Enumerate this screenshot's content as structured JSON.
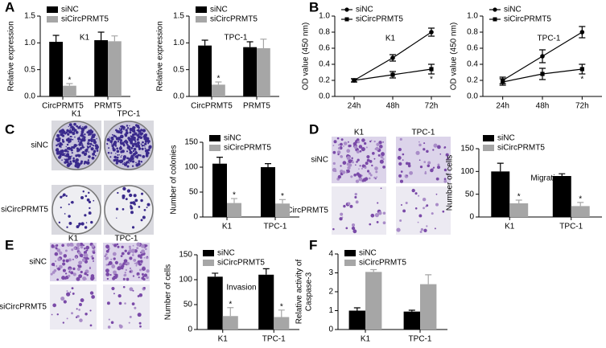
{
  "panel_labels": [
    "A",
    "B",
    "C",
    "D",
    "E",
    "F"
  ],
  "images": [
    {
      "columns": [
        "K1",
        "TPC-1"
      ],
      "rows": [
        "siNC",
        "siCircPRMT5"
      ]
    },
    {
      "columns": [
        "K1",
        "TPC-1"
      ],
      "rows": [
        "siNC",
        "siCircPRMT5"
      ]
    },
    {
      "columns": [
        "K1",
        "TPC-1"
      ],
      "rows": [
        "siNC",
        "siCircPRMT5"
      ]
    }
  ],
  "chart_data": [
    {
      "type": "bar",
      "annotation": "K1",
      "ylabel": [
        "Relative expression"
      ],
      "categories": [
        "CircPRMT5",
        "PRMT5"
      ],
      "series": [
        {
          "name": "siNC",
          "color": "#000000",
          "values": [
            1.02,
            1.05
          ],
          "errors": [
            0.12,
            0.15
          ],
          "significance": [
            null,
            null
          ]
        },
        {
          "name": "siCircPRMT5",
          "color": "#a6a6a6",
          "values": [
            0.2,
            1.03
          ],
          "errors": [
            0.04,
            0.1
          ],
          "significance": [
            "*",
            null
          ]
        }
      ],
      "ylim": [
        0,
        1.5
      ],
      "yticks": [
        {
          "value": 0,
          "label": "0.0"
        },
        {
          "value": 0.5,
          "label": "0.5"
        },
        {
          "value": 1,
          "label": "1.0"
        },
        {
          "value": 1.5,
          "label": "1.5"
        }
      ]
    },
    {
      "type": "bar",
      "annotation": "TPC-1",
      "ylabel": [
        "Relative expression"
      ],
      "categories": [
        "CircPRMT5",
        "PRMT5"
      ],
      "series": [
        {
          "name": "siNC",
          "color": "#000000",
          "values": [
            0.95,
            0.92
          ],
          "errors": [
            0.1,
            0.1
          ],
          "significance": [
            null,
            null
          ]
        },
        {
          "name": "siCircPRMT5",
          "color": "#a6a6a6",
          "values": [
            0.22,
            0.9
          ],
          "errors": [
            0.05,
            0.17
          ],
          "significance": [
            "*",
            null
          ]
        }
      ],
      "ylim": [
        0,
        1.5
      ],
      "yticks": [
        {
          "value": 0,
          "label": "0.0"
        },
        {
          "value": 0.5,
          "label": "0.5"
        },
        {
          "value": 1,
          "label": "1.0"
        },
        {
          "value": 1.5,
          "label": "1.5"
        }
      ]
    },
    {
      "type": "line",
      "annotation": "K1",
      "ylabel": [
        "OD value (450 nm)"
      ],
      "categories": [
        "24h",
        "48h",
        "72h"
      ],
      "series": [
        {
          "name": "siNC",
          "color": "#000000",
          "marker": "circle",
          "values": [
            0.2,
            0.48,
            0.8
          ],
          "errors": [
            0.02,
            0.04,
            0.05
          ],
          "significance": [
            null,
            null,
            null
          ]
        },
        {
          "name": "siCircPRMT5",
          "color": "#000000",
          "marker": "square",
          "values": [
            0.2,
            0.27,
            0.34
          ],
          "errors": [
            0.02,
            0.04,
            0.06
          ],
          "significance": [
            null,
            null,
            "*"
          ]
        }
      ],
      "ylim": [
        0,
        1
      ],
      "yticks": [
        {
          "value": 0,
          "label": "0.0"
        },
        {
          "value": 0.2,
          "label": "0.2"
        },
        {
          "value": 0.4,
          "label": "0.4"
        },
        {
          "value": 0.6,
          "label": "0.6"
        },
        {
          "value": 0.8,
          "label": "0.8"
        },
        {
          "value": 1,
          "label": "1.0"
        }
      ]
    },
    {
      "type": "line",
      "annotation": "TPC-1",
      "ylabel": [
        "OD value (450 nm)"
      ],
      "categories": [
        "24h",
        "48h",
        "72h"
      ],
      "series": [
        {
          "name": "siNC",
          "color": "#000000",
          "marker": "circle",
          "values": [
            0.2,
            0.5,
            0.8
          ],
          "errors": [
            0.04,
            0.08,
            0.07
          ],
          "significance": [
            null,
            null,
            null
          ]
        },
        {
          "name": "siCircPRMT5",
          "color": "#000000",
          "marker": "square",
          "values": [
            0.18,
            0.28,
            0.34
          ],
          "errors": [
            0.04,
            0.07,
            0.06
          ],
          "significance": [
            null,
            null,
            "*"
          ]
        }
      ],
      "ylim": [
        0,
        1
      ],
      "yticks": [
        {
          "value": 0,
          "label": "0.0"
        },
        {
          "value": 0.2,
          "label": "0.2"
        },
        {
          "value": 0.4,
          "label": "0.4"
        },
        {
          "value": 0.6,
          "label": "0.6"
        },
        {
          "value": 0.8,
          "label": "0.8"
        },
        {
          "value": 1,
          "label": "1.0"
        }
      ]
    },
    {
      "type": "bar",
      "ylabel": [
        "Number of colonies"
      ],
      "categories": [
        "K1",
        "TPC-1"
      ],
      "series": [
        {
          "name": "siNC",
          "color": "#000000",
          "values": [
            107,
            100
          ],
          "errors": [
            13,
            7
          ],
          "significance": [
            null,
            null
          ]
        },
        {
          "name": "siCircPRMT5",
          "color": "#a6a6a6",
          "values": [
            28,
            27
          ],
          "errors": [
            9,
            8
          ],
          "significance": [
            "*",
            "*"
          ]
        }
      ],
      "ylim": [
        0,
        150
      ],
      "yticks": [
        0,
        50,
        100,
        150
      ]
    },
    {
      "type": "bar",
      "annotation": "Migration",
      "ylabel": [
        "Number of cells"
      ],
      "categories": [
        "K1",
        "TPC-1"
      ],
      "series": [
        {
          "name": "siNC",
          "color": "#000000",
          "values": [
            100,
            90
          ],
          "errors": [
            18,
            5
          ],
          "significance": [
            null,
            null
          ]
        },
        {
          "name": "siCircPRMT5",
          "color": "#a6a6a6",
          "values": [
            30,
            24
          ],
          "errors": [
            7,
            8
          ],
          "significance": [
            "*",
            "*"
          ]
        }
      ],
      "ylim": [
        0,
        150
      ],
      "yticks": [
        0,
        50,
        100,
        150
      ]
    },
    {
      "type": "bar",
      "annotation": "Invasion",
      "ylabel": [
        "Number of cells"
      ],
      "categories": [
        "K1",
        "TPC-1"
      ],
      "series": [
        {
          "name": "siNC",
          "color": "#000000",
          "values": [
            106,
            110
          ],
          "errors": [
            7,
            12
          ],
          "significance": [
            null,
            null
          ]
        },
        {
          "name": "siCircPRMT5",
          "color": "#a6a6a6",
          "values": [
            27,
            25
          ],
          "errors": [
            17,
            14
          ],
          "significance": [
            "*",
            "*"
          ]
        }
      ],
      "ylim": [
        0,
        150
      ],
      "yticks": [
        0,
        50,
        100,
        150
      ]
    },
    {
      "type": "bar",
      "ylabel": [
        "Relative activity of",
        "Caspase-3"
      ],
      "categories": [
        "K1",
        "TPC-1"
      ],
      "series": [
        {
          "name": "siNC",
          "color": "#000000",
          "values": [
            1.0,
            0.95
          ],
          "errors": [
            0.15,
            0.07
          ],
          "significance": [
            null,
            null
          ]
        },
        {
          "name": "siCircPRMT5",
          "color": "#a6a6a6",
          "values": [
            3.05,
            2.4
          ],
          "errors": [
            0.12,
            0.5
          ],
          "significance": [
            null,
            null
          ]
        }
      ],
      "ylim": [
        0,
        4
      ],
      "yticks": [
        0,
        1,
        2,
        3,
        4
      ]
    }
  ]
}
